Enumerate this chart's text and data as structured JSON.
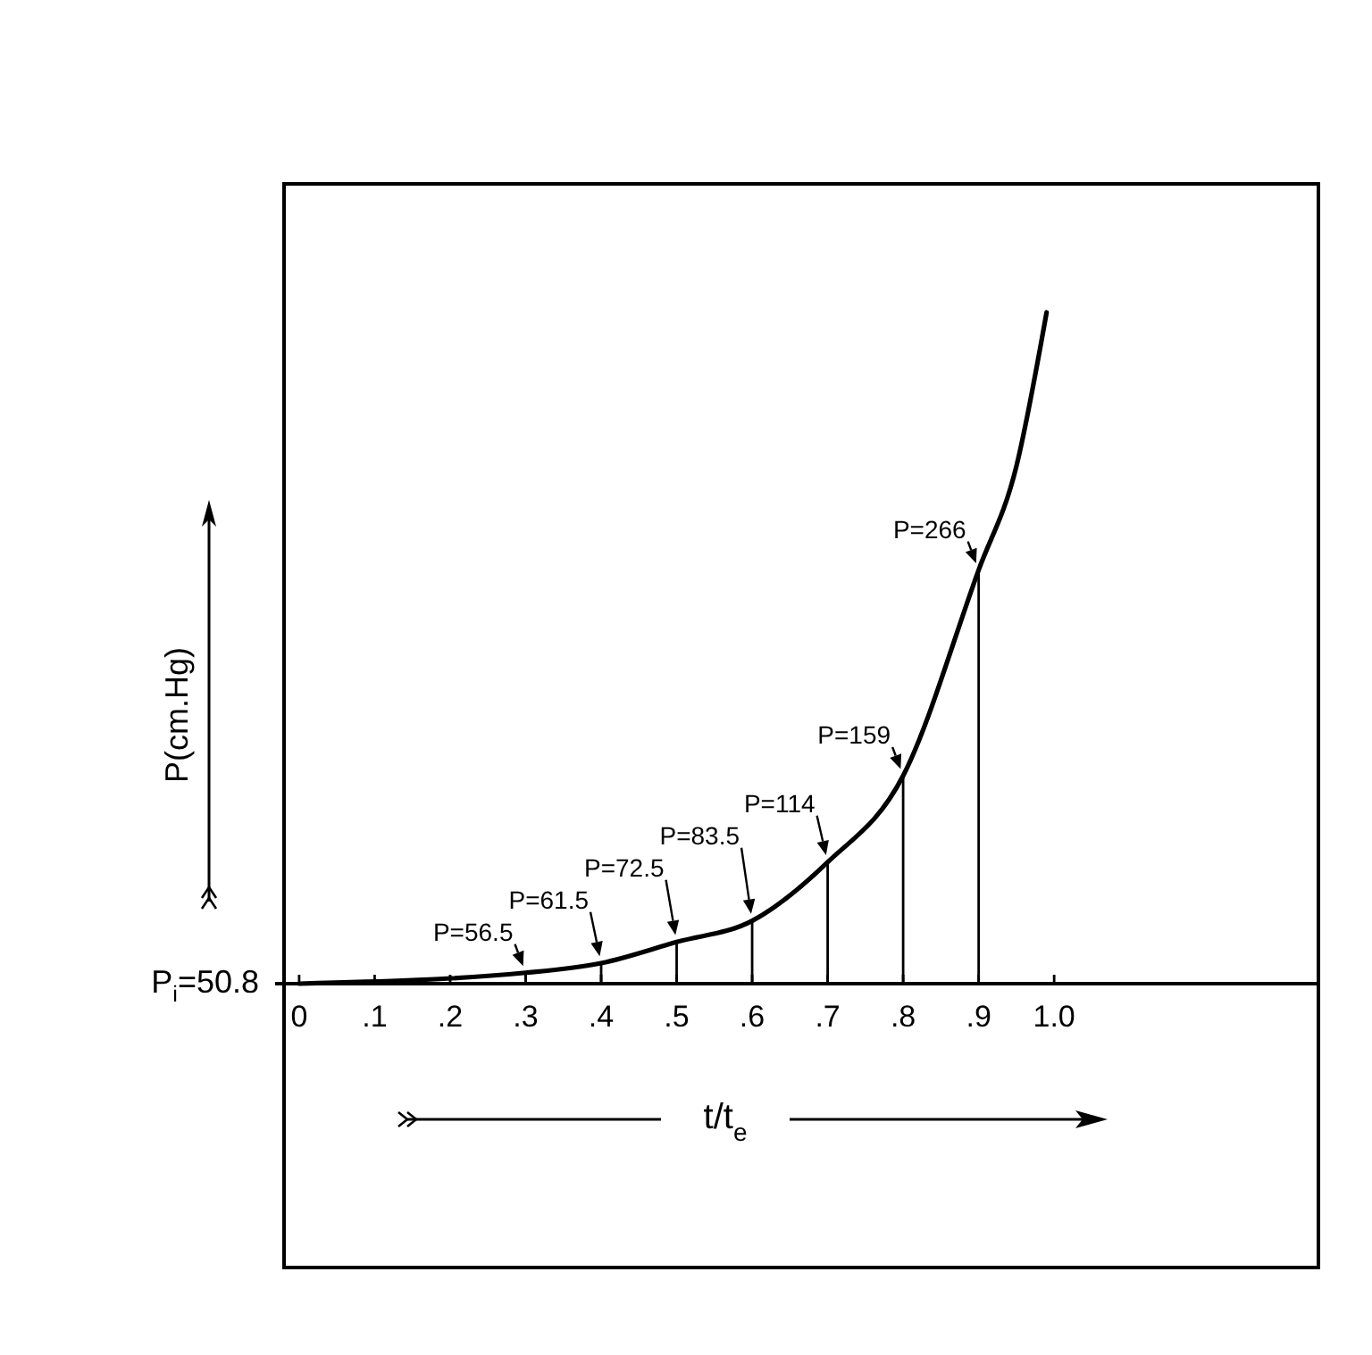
{
  "chart_data": {
    "type": "line",
    "xlabel": "t/t$_{e}$",
    "ylabel": "P(cm.Hg)",
    "xlim": [
      -0.02,
      1.35
    ],
    "xticks": [
      0,
      {
        "value": 0.1,
        "label": ".1"
      },
      {
        "value": 0.2,
        "label": ".2"
      },
      {
        "value": 0.3,
        "label": ".3"
      },
      {
        "value": 0.4,
        "label": ".4"
      },
      {
        "value": 0.5,
        "label": ".5"
      },
      {
        "value": 0.6,
        "label": ".6"
      },
      {
        "value": 0.7,
        "label": ".7"
      },
      {
        "value": 0.8,
        "label": ".8"
      },
      {
        "value": 0.9,
        "label": ".9"
      },
      {
        "value": 1,
        "label": "1.0"
      }
    ],
    "series": [
      {
        "color": "#000000",
        "x": [
          0,
          0.3,
          0.4,
          0.5,
          0.6,
          0.7,
          0.8,
          0.9,
          0.95,
          0.99
        ],
        "values": [
          50.8,
          56.5,
          61.5,
          72.5,
          83.5,
          114,
          159,
          266,
          320,
          400
        ],
        "value_labels": [
          "P$_{i}$=50.8",
          "P=56.5",
          "P=61.5",
          "P=72.5",
          "P=83.5",
          "P=114",
          "P=159",
          "P=266",
          null,
          null
        ]
      }
    ]
  }
}
